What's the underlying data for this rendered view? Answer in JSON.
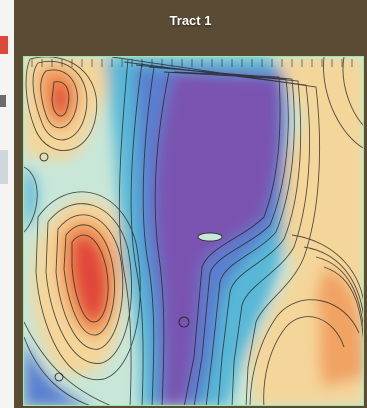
{
  "title": "Tract 1",
  "map": {
    "type": "contour-heatmap",
    "palette": {
      "very_low": "#7a53b0",
      "low": "#5a7fcf",
      "mid_low": "#58b7d6",
      "mid": "#bfe6df",
      "mid_high": "#f4d59a",
      "high": "#f09a5a",
      "very_high": "#e0463a",
      "border": "#9be7a8"
    }
  }
}
